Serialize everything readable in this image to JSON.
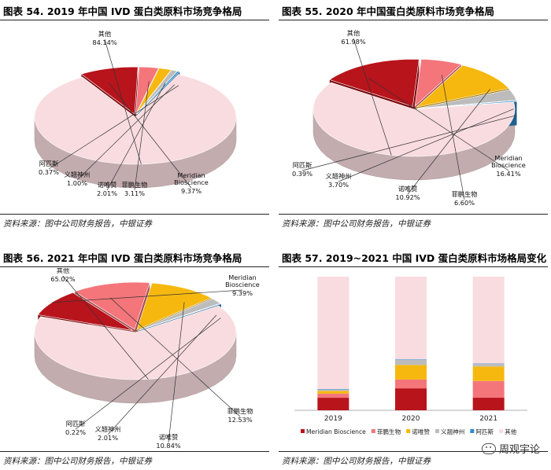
{
  "source_note": "资料来源：图中公司财务报告，中银证券",
  "watermark": "周观宇论",
  "colors": {
    "meridian": "#b8141c",
    "feipeng": "#f4767a",
    "nuoweizan": "#f6b80f",
    "yixu": "#bcbcbc",
    "apisi": "#2e8ccf",
    "other": "#f9dcdf"
  },
  "chart_data": [
    {
      "type": "pie",
      "title": "图表 54. 2019 年中国 IVD 蛋白类原料市场竞争格局",
      "slices": [
        {
          "key": "other",
          "name": "其他",
          "value": 84.14,
          "label": "84.14%"
        },
        {
          "key": "meridian",
          "name": "Meridian Bioscience",
          "value": 9.37,
          "label": "9.37%"
        },
        {
          "key": "feipeng",
          "name": "菲鹏生物",
          "value": 3.11,
          "label": "3.11%"
        },
        {
          "key": "nuoweizan",
          "name": "诺唯赞",
          "value": 2.01,
          "label": "2.01%"
        },
        {
          "key": "yixu",
          "name": "义翘神州",
          "value": 1.0,
          "label": "1.00%"
        },
        {
          "key": "apisi",
          "name": "阿匹斯",
          "value": 0.37,
          "label": "0.37%"
        }
      ]
    },
    {
      "type": "pie",
      "title": "图表 55. 2020 年中国蛋白类原料市场竞争格局",
      "slices": [
        {
          "key": "other",
          "name": "其他",
          "value": 61.98,
          "label": "61.98%"
        },
        {
          "key": "meridian",
          "name": "Meridian Bioscience",
          "value": 16.41,
          "label": "16.41%"
        },
        {
          "key": "feipeng",
          "name": "菲鹏生物",
          "value": 6.6,
          "label": "6.60%"
        },
        {
          "key": "nuoweizan",
          "name": "诺唯赞",
          "value": 10.92,
          "label": "10.92%"
        },
        {
          "key": "yixu",
          "name": "义翘神州",
          "value": 3.7,
          "label": "3.70%"
        },
        {
          "key": "apisi",
          "name": "阿匹斯",
          "value": 0.39,
          "label": "0.39%"
        }
      ]
    },
    {
      "type": "pie",
      "title": "图表 56. 2021 年中国 IVD 蛋白类原料市场竞争格局",
      "slices": [
        {
          "key": "other",
          "name": "其他",
          "value": 65.02,
          "label": "65.02%"
        },
        {
          "key": "meridian",
          "name": "Meridian Bioscience",
          "value": 9.39,
          "label": "9.39%"
        },
        {
          "key": "feipeng",
          "name": "菲鹏生物",
          "value": 12.53,
          "label": "12.53%"
        },
        {
          "key": "nuoweizan",
          "name": "诺唯赞",
          "value": 10.84,
          "label": "10.84%"
        },
        {
          "key": "yixu",
          "name": "义翘神州",
          "value": 2.01,
          "label": "2.01%"
        },
        {
          "key": "apisi",
          "name": "阿匹斯",
          "value": 0.22,
          "label": "0.22%"
        }
      ]
    },
    {
      "type": "bar",
      "stacked": true,
      "percent": true,
      "title": "图表 57. 2019~2021 中国 IVD 蛋白类原料市场格局变化",
      "categories": [
        "2019",
        "2020",
        "2021"
      ],
      "ylim": [
        0,
        100
      ],
      "legend": "bottom",
      "series": [
        {
          "key": "meridian",
          "name": "Meridian Bioscience",
          "values": [
            9.37,
            16.41,
            9.39
          ]
        },
        {
          "key": "feipeng",
          "name": "菲鹏生物",
          "values": [
            3.11,
            6.6,
            12.53
          ]
        },
        {
          "key": "nuoweizan",
          "name": "诺唯赞",
          "values": [
            2.01,
            10.92,
            10.84
          ]
        },
        {
          "key": "yixu",
          "name": "义翘神州",
          "values": [
            1.0,
            3.7,
            2.01
          ]
        },
        {
          "key": "apisi",
          "name": "阿匹斯",
          "values": [
            0.37,
            0.39,
            0.22
          ]
        },
        {
          "key": "other",
          "name": "其他",
          "values": [
            84.14,
            61.98,
            65.02
          ]
        }
      ]
    }
  ]
}
